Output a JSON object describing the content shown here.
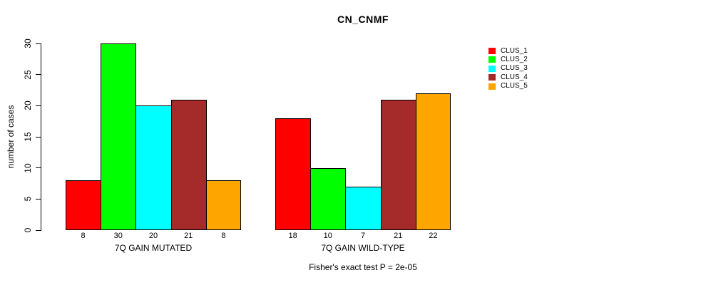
{
  "chart_data": {
    "type": "bar",
    "title": "CN_CNMF",
    "xlabel": "",
    "ylabel": "number of cases",
    "ylim": [
      0,
      30
    ],
    "yticks": [
      0,
      5,
      10,
      15,
      20,
      25,
      30
    ],
    "grid": false,
    "legend_position": "right-outside",
    "bar_value_labels": true,
    "categories": [
      "7Q GAIN MUTATED",
      "7Q GAIN WILD-TYPE"
    ],
    "series": [
      {
        "name": "CLUS_1",
        "color": "#FF0000",
        "values": [
          8,
          18
        ]
      },
      {
        "name": "CLUS_2",
        "color": "#00FF00",
        "values": [
          30,
          10
        ]
      },
      {
        "name": "CLUS_3",
        "color": "#00FFFF",
        "values": [
          20,
          7
        ]
      },
      {
        "name": "CLUS_4",
        "color": "#A52A2A",
        "values": [
          21,
          21
        ]
      },
      {
        "name": "CLUS_5",
        "color": "#FFA500",
        "values": [
          8,
          22
        ]
      }
    ],
    "annotation": "Fisher's exact test P = 2e-05"
  }
}
